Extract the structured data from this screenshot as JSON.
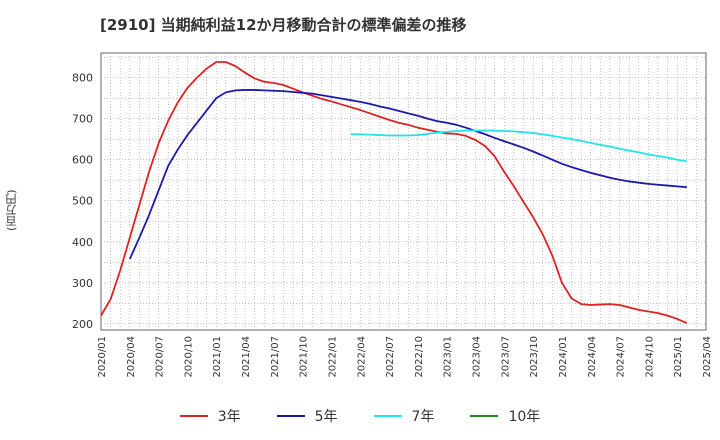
{
  "chart_data": {
    "type": "line",
    "title": "[2910]  当期純利益12か月移動合計の標準偏差の推移",
    "ylabel": "(百万円)",
    "ylim": [
      185,
      860
    ],
    "yticks": [
      200,
      300,
      400,
      500,
      600,
      700,
      800
    ],
    "xlim": [
      "2020-01",
      "2025-04"
    ],
    "xticks": [
      "2020/01",
      "2020/04",
      "2020/07",
      "2020/10",
      "2021/01",
      "2021/04",
      "2021/07",
      "2021/10",
      "2022/01",
      "2022/04",
      "2022/07",
      "2022/10",
      "2023/01",
      "2023/04",
      "2023/07",
      "2023/10",
      "2024/01",
      "2024/04",
      "2024/07",
      "2024/10",
      "2025/01",
      "2025/04"
    ],
    "grid": true,
    "legend_position": "bottom",
    "series": [
      {
        "name": "3年",
        "color": "#dd2222",
        "points": [
          [
            "2020-01",
            220
          ],
          [
            "2020-02",
            260
          ],
          [
            "2020-03",
            330
          ],
          [
            "2020-04",
            410
          ],
          [
            "2020-05",
            490
          ],
          [
            "2020-06",
            570
          ],
          [
            "2020-07",
            640
          ],
          [
            "2020-08",
            695
          ],
          [
            "2020-09",
            740
          ],
          [
            "2020-10",
            775
          ],
          [
            "2020-11",
            800
          ],
          [
            "2020-12",
            822
          ],
          [
            "2021-01",
            838
          ],
          [
            "2021-02",
            838
          ],
          [
            "2021-03",
            828
          ],
          [
            "2021-04",
            812
          ],
          [
            "2021-05",
            798
          ],
          [
            "2021-06",
            790
          ],
          [
            "2021-07",
            787
          ],
          [
            "2021-08",
            782
          ],
          [
            "2021-09",
            773
          ],
          [
            "2021-10",
            764
          ],
          [
            "2021-11",
            756
          ],
          [
            "2021-12",
            748
          ],
          [
            "2022-01",
            742
          ],
          [
            "2022-02",
            735
          ],
          [
            "2022-03",
            728
          ],
          [
            "2022-04",
            721
          ],
          [
            "2022-05",
            713
          ],
          [
            "2022-06",
            705
          ],
          [
            "2022-07",
            697
          ],
          [
            "2022-08",
            690
          ],
          [
            "2022-09",
            685
          ],
          [
            "2022-10",
            678
          ],
          [
            "2022-11",
            673
          ],
          [
            "2022-12",
            668
          ],
          [
            "2023-01",
            664
          ],
          [
            "2023-02",
            663
          ],
          [
            "2023-03",
            658
          ],
          [
            "2023-04",
            648
          ],
          [
            "2023-05",
            633
          ],
          [
            "2023-06",
            608
          ],
          [
            "2023-07",
            570
          ],
          [
            "2023-08",
            535
          ],
          [
            "2023-09",
            497
          ],
          [
            "2023-10",
            460
          ],
          [
            "2023-11",
            418
          ],
          [
            "2023-12",
            366
          ],
          [
            "2024-01",
            300
          ],
          [
            "2024-02",
            262
          ],
          [
            "2024-03",
            248
          ],
          [
            "2024-04",
            246
          ],
          [
            "2024-05",
            247
          ],
          [
            "2024-06",
            248
          ],
          [
            "2024-07",
            246
          ],
          [
            "2024-08",
            240
          ],
          [
            "2024-09",
            234
          ],
          [
            "2024-10",
            230
          ],
          [
            "2024-11",
            226
          ],
          [
            "2024-12",
            220
          ],
          [
            "2025-01",
            212
          ],
          [
            "2025-02",
            202
          ]
        ]
      },
      {
        "name": "5年",
        "color": "#1a1aaa",
        "points": [
          [
            "2020-04",
            358
          ],
          [
            "2020-05",
            410
          ],
          [
            "2020-06",
            465
          ],
          [
            "2020-07",
            525
          ],
          [
            "2020-08",
            585
          ],
          [
            "2020-09",
            625
          ],
          [
            "2020-10",
            660
          ],
          [
            "2020-11",
            690
          ],
          [
            "2020-12",
            720
          ],
          [
            "2021-01",
            750
          ],
          [
            "2021-02",
            764
          ],
          [
            "2021-03",
            769
          ],
          [
            "2021-04",
            770
          ],
          [
            "2021-05",
            770
          ],
          [
            "2021-06",
            769
          ],
          [
            "2021-07",
            768
          ],
          [
            "2021-08",
            767
          ],
          [
            "2021-09",
            765
          ],
          [
            "2021-10",
            763
          ],
          [
            "2021-11",
            761
          ],
          [
            "2021-12",
            757
          ],
          [
            "2022-01",
            753
          ],
          [
            "2022-02",
            749
          ],
          [
            "2022-03",
            745
          ],
          [
            "2022-04",
            741
          ],
          [
            "2022-05",
            736
          ],
          [
            "2022-06",
            730
          ],
          [
            "2022-07",
            725
          ],
          [
            "2022-08",
            719
          ],
          [
            "2022-09",
            713
          ],
          [
            "2022-10",
            707
          ],
          [
            "2022-11",
            700
          ],
          [
            "2022-12",
            694
          ],
          [
            "2023-01",
            690
          ],
          [
            "2023-02",
            685
          ],
          [
            "2023-03",
            678
          ],
          [
            "2023-04",
            670
          ],
          [
            "2023-05",
            662
          ],
          [
            "2023-06",
            653
          ],
          [
            "2023-07",
            645
          ],
          [
            "2023-08",
            637
          ],
          [
            "2023-09",
            629
          ],
          [
            "2023-10",
            620
          ],
          [
            "2023-11",
            610
          ],
          [
            "2023-12",
            600
          ],
          [
            "2024-01",
            590
          ],
          [
            "2024-02",
            582
          ],
          [
            "2024-03",
            575
          ],
          [
            "2024-04",
            568
          ],
          [
            "2024-05",
            562
          ],
          [
            "2024-06",
            556
          ],
          [
            "2024-07",
            551
          ],
          [
            "2024-08",
            547
          ],
          [
            "2024-09",
            544
          ],
          [
            "2024-10",
            541
          ],
          [
            "2024-11",
            539
          ],
          [
            "2024-12",
            537
          ],
          [
            "2025-01",
            535
          ],
          [
            "2025-02",
            533
          ]
        ]
      },
      {
        "name": "7年",
        "color": "#22e5e5",
        "points": [
          [
            "2022-03",
            662
          ],
          [
            "2022-04",
            662
          ],
          [
            "2022-05",
            661
          ],
          [
            "2022-06",
            660
          ],
          [
            "2022-07",
            659
          ],
          [
            "2022-08",
            659
          ],
          [
            "2022-09",
            659
          ],
          [
            "2022-10",
            660
          ],
          [
            "2022-11",
            663
          ],
          [
            "2022-12",
            666
          ],
          [
            "2023-01",
            668
          ],
          [
            "2023-02",
            670
          ],
          [
            "2023-03",
            671
          ],
          [
            "2023-04",
            671
          ],
          [
            "2023-05",
            671
          ],
          [
            "2023-06",
            671
          ],
          [
            "2023-07",
            670
          ],
          [
            "2023-08",
            669
          ],
          [
            "2023-09",
            667
          ],
          [
            "2023-10",
            665
          ],
          [
            "2023-11",
            662
          ],
          [
            "2023-12",
            658
          ],
          [
            "2024-01",
            654
          ],
          [
            "2024-02",
            650
          ],
          [
            "2024-03",
            646
          ],
          [
            "2024-04",
            641
          ],
          [
            "2024-05",
            636
          ],
          [
            "2024-06",
            632
          ],
          [
            "2024-07",
            627
          ],
          [
            "2024-08",
            622
          ],
          [
            "2024-09",
            618
          ],
          [
            "2024-10",
            613
          ],
          [
            "2024-11",
            609
          ],
          [
            "2024-12",
            605
          ],
          [
            "2025-01",
            600
          ],
          [
            "2025-02",
            596
          ]
        ]
      },
      {
        "name": "10年",
        "color": "#228822",
        "points": []
      }
    ]
  }
}
